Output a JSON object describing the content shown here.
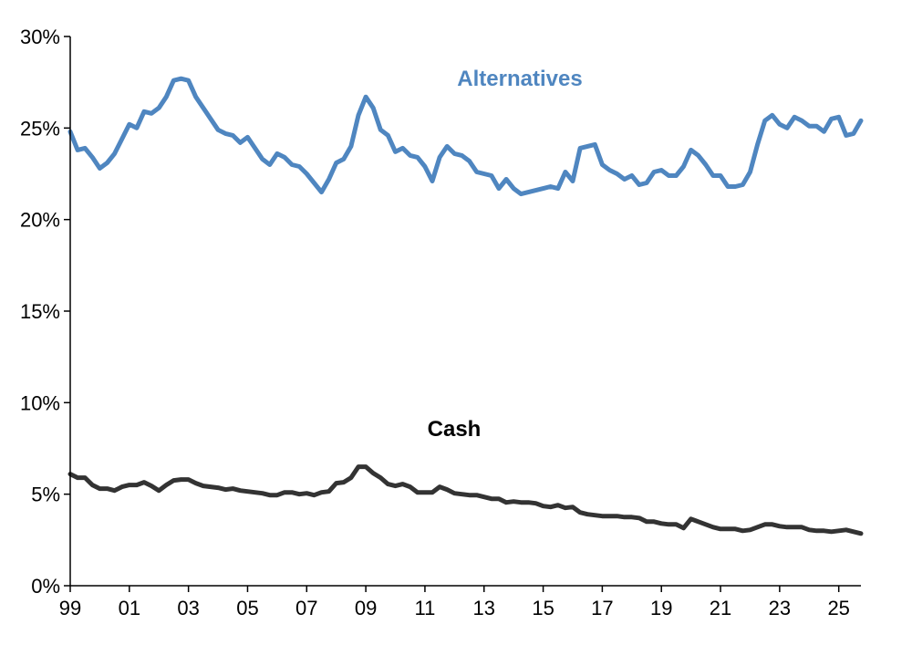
{
  "chart_data": {
    "type": "line",
    "title": "",
    "xlabel": "",
    "ylabel": "",
    "xlim": [
      1999,
      2025.75
    ],
    "ylim": [
      0,
      30
    ],
    "x_ticks": [
      {
        "x": 1999,
        "label": "99"
      },
      {
        "x": 2001,
        "label": "01"
      },
      {
        "x": 2003,
        "label": "03"
      },
      {
        "x": 2005,
        "label": "05"
      },
      {
        "x": 2007,
        "label": "07"
      },
      {
        "x": 2009,
        "label": "09"
      },
      {
        "x": 2011,
        "label": "11"
      },
      {
        "x": 2013,
        "label": "13"
      },
      {
        "x": 2015,
        "label": "15"
      },
      {
        "x": 2017,
        "label": "17"
      },
      {
        "x": 2019,
        "label": "19"
      },
      {
        "x": 2021,
        "label": "21"
      },
      {
        "x": 2023,
        "label": "23"
      },
      {
        "x": 2025,
        "label": "25"
      }
    ],
    "y_ticks": [
      {
        "y": 0,
        "label": "0%"
      },
      {
        "y": 5,
        "label": "5%"
      },
      {
        "y": 10,
        "label": "10%"
      },
      {
        "y": 15,
        "label": "15%"
      },
      {
        "y": 20,
        "label": "20%"
      },
      {
        "y": 25,
        "label": "25%"
      },
      {
        "y": 30,
        "label": "30%"
      }
    ],
    "grid": false,
    "legend": "none",
    "series": [
      {
        "name": "Alternatives",
        "color": "#4f86c0",
        "label_position": "top-right",
        "points": [
          [
            1999.0,
            24.8
          ],
          [
            1999.25,
            23.8
          ],
          [
            1999.5,
            23.9
          ],
          [
            1999.75,
            23.4
          ],
          [
            2000.0,
            22.8
          ],
          [
            2000.25,
            23.1
          ],
          [
            2000.5,
            23.6
          ],
          [
            2000.75,
            24.4
          ],
          [
            2001.0,
            25.2
          ],
          [
            2001.25,
            25.0
          ],
          [
            2001.5,
            25.9
          ],
          [
            2001.75,
            25.8
          ],
          [
            2002.0,
            26.1
          ],
          [
            2002.25,
            26.7
          ],
          [
            2002.5,
            27.6
          ],
          [
            2002.75,
            27.7
          ],
          [
            2003.0,
            27.6
          ],
          [
            2003.25,
            26.7
          ],
          [
            2003.5,
            26.1
          ],
          [
            2003.75,
            25.5
          ],
          [
            2004.0,
            24.9
          ],
          [
            2004.25,
            24.7
          ],
          [
            2004.5,
            24.6
          ],
          [
            2004.75,
            24.2
          ],
          [
            2005.0,
            24.5
          ],
          [
            2005.25,
            23.9
          ],
          [
            2005.5,
            23.3
          ],
          [
            2005.75,
            23.0
          ],
          [
            2006.0,
            23.6
          ],
          [
            2006.25,
            23.4
          ],
          [
            2006.5,
            23.0
          ],
          [
            2006.75,
            22.9
          ],
          [
            2007.0,
            22.5
          ],
          [
            2007.25,
            22.0
          ],
          [
            2007.5,
            21.5
          ],
          [
            2007.75,
            22.2
          ],
          [
            2008.0,
            23.1
          ],
          [
            2008.25,
            23.3
          ],
          [
            2008.5,
            24.0
          ],
          [
            2008.75,
            25.7
          ],
          [
            2009.0,
            26.7
          ],
          [
            2009.25,
            26.1
          ],
          [
            2009.5,
            24.9
          ],
          [
            2009.75,
            24.6
          ],
          [
            2010.0,
            23.7
          ],
          [
            2010.25,
            23.9
          ],
          [
            2010.5,
            23.5
          ],
          [
            2010.75,
            23.4
          ],
          [
            2011.0,
            22.9
          ],
          [
            2011.25,
            22.1
          ],
          [
            2011.5,
            23.4
          ],
          [
            2011.75,
            24.0
          ],
          [
            2012.0,
            23.6
          ],
          [
            2012.25,
            23.5
          ],
          [
            2012.5,
            23.2
          ],
          [
            2012.75,
            22.6
          ],
          [
            2013.0,
            22.5
          ],
          [
            2013.25,
            22.4
          ],
          [
            2013.5,
            21.7
          ],
          [
            2013.75,
            22.2
          ],
          [
            2014.0,
            21.7
          ],
          [
            2014.25,
            21.4
          ],
          [
            2014.5,
            21.5
          ],
          [
            2014.75,
            21.6
          ],
          [
            2015.0,
            21.7
          ],
          [
            2015.25,
            21.8
          ],
          [
            2015.5,
            21.7
          ],
          [
            2015.75,
            22.6
          ],
          [
            2016.0,
            22.1
          ],
          [
            2016.25,
            23.9
          ],
          [
            2016.5,
            24.0
          ],
          [
            2016.75,
            24.1
          ],
          [
            2017.0,
            23.0
          ],
          [
            2017.25,
            22.7
          ],
          [
            2017.5,
            22.5
          ],
          [
            2017.75,
            22.2
          ],
          [
            2018.0,
            22.4
          ],
          [
            2018.25,
            21.9
          ],
          [
            2018.5,
            22.0
          ],
          [
            2018.75,
            22.6
          ],
          [
            2019.0,
            22.7
          ],
          [
            2019.25,
            22.4
          ],
          [
            2019.5,
            22.4
          ],
          [
            2019.75,
            22.9
          ],
          [
            2020.0,
            23.8
          ],
          [
            2020.25,
            23.5
          ],
          [
            2020.5,
            23.0
          ],
          [
            2020.75,
            22.4
          ],
          [
            2021.0,
            22.4
          ],
          [
            2021.25,
            21.8
          ],
          [
            2021.5,
            21.8
          ],
          [
            2021.75,
            21.9
          ],
          [
            2022.0,
            22.6
          ],
          [
            2022.25,
            24.1
          ],
          [
            2022.5,
            25.4
          ],
          [
            2022.75,
            25.7
          ],
          [
            2023.0,
            25.2
          ],
          [
            2023.25,
            25.0
          ],
          [
            2023.5,
            25.6
          ],
          [
            2023.75,
            25.4
          ],
          [
            2024.0,
            25.1
          ],
          [
            2024.25,
            25.1
          ],
          [
            2024.5,
            24.8
          ],
          [
            2024.75,
            25.5
          ],
          [
            2025.0,
            25.6
          ],
          [
            2025.25,
            24.6
          ],
          [
            2025.5,
            24.7
          ],
          [
            2025.75,
            25.4
          ]
        ]
      },
      {
        "name": "Cash",
        "color": "#333333",
        "label_position": "middle",
        "points": [
          [
            1999.0,
            6.1
          ],
          [
            1999.25,
            5.9
          ],
          [
            1999.5,
            5.9
          ],
          [
            1999.75,
            5.5
          ],
          [
            2000.0,
            5.3
          ],
          [
            2000.25,
            5.3
          ],
          [
            2000.5,
            5.2
          ],
          [
            2000.75,
            5.4
          ],
          [
            2001.0,
            5.5
          ],
          [
            2001.25,
            5.5
          ],
          [
            2001.5,
            5.65
          ],
          [
            2001.75,
            5.45
          ],
          [
            2002.0,
            5.2
          ],
          [
            2002.25,
            5.5
          ],
          [
            2002.5,
            5.75
          ],
          [
            2002.75,
            5.8
          ],
          [
            2003.0,
            5.8
          ],
          [
            2003.25,
            5.6
          ],
          [
            2003.5,
            5.45
          ],
          [
            2003.75,
            5.4
          ],
          [
            2004.0,
            5.35
          ],
          [
            2004.25,
            5.25
          ],
          [
            2004.5,
            5.3
          ],
          [
            2004.75,
            5.2
          ],
          [
            2005.0,
            5.15
          ],
          [
            2005.25,
            5.1
          ],
          [
            2005.5,
            5.05
          ],
          [
            2005.75,
            4.95
          ],
          [
            2006.0,
            4.95
          ],
          [
            2006.25,
            5.1
          ],
          [
            2006.5,
            5.1
          ],
          [
            2006.75,
            5.0
          ],
          [
            2007.0,
            5.05
          ],
          [
            2007.25,
            4.95
          ],
          [
            2007.5,
            5.1
          ],
          [
            2007.75,
            5.15
          ],
          [
            2008.0,
            5.6
          ],
          [
            2008.25,
            5.65
          ],
          [
            2008.5,
            5.9
          ],
          [
            2008.75,
            6.5
          ],
          [
            2009.0,
            6.5
          ],
          [
            2009.25,
            6.15
          ],
          [
            2009.5,
            5.9
          ],
          [
            2009.75,
            5.55
          ],
          [
            2010.0,
            5.45
          ],
          [
            2010.25,
            5.55
          ],
          [
            2010.5,
            5.4
          ],
          [
            2010.75,
            5.1
          ],
          [
            2011.0,
            5.1
          ],
          [
            2011.25,
            5.1
          ],
          [
            2011.5,
            5.4
          ],
          [
            2011.75,
            5.25
          ],
          [
            2012.0,
            5.05
          ],
          [
            2012.25,
            5.0
          ],
          [
            2012.5,
            4.95
          ],
          [
            2012.75,
            4.95
          ],
          [
            2013.0,
            4.85
          ],
          [
            2013.25,
            4.75
          ],
          [
            2013.5,
            4.75
          ],
          [
            2013.75,
            4.55
          ],
          [
            2014.0,
            4.6
          ],
          [
            2014.25,
            4.55
          ],
          [
            2014.5,
            4.55
          ],
          [
            2014.75,
            4.5
          ],
          [
            2015.0,
            4.35
          ],
          [
            2015.25,
            4.3
          ],
          [
            2015.5,
            4.4
          ],
          [
            2015.75,
            4.25
          ],
          [
            2016.0,
            4.3
          ],
          [
            2016.25,
            4.0
          ],
          [
            2016.5,
            3.9
          ],
          [
            2016.75,
            3.85
          ],
          [
            2017.0,
            3.8
          ],
          [
            2017.25,
            3.8
          ],
          [
            2017.5,
            3.8
          ],
          [
            2017.75,
            3.75
          ],
          [
            2018.0,
            3.75
          ],
          [
            2018.25,
            3.7
          ],
          [
            2018.5,
            3.5
          ],
          [
            2018.75,
            3.5
          ],
          [
            2019.0,
            3.4
          ],
          [
            2019.25,
            3.35
          ],
          [
            2019.5,
            3.35
          ],
          [
            2019.75,
            3.15
          ],
          [
            2020.0,
            3.65
          ],
          [
            2020.25,
            3.5
          ],
          [
            2020.5,
            3.35
          ],
          [
            2020.75,
            3.2
          ],
          [
            2021.0,
            3.1
          ],
          [
            2021.25,
            3.1
          ],
          [
            2021.5,
            3.1
          ],
          [
            2021.75,
            3.0
          ],
          [
            2022.0,
            3.05
          ],
          [
            2022.25,
            3.2
          ],
          [
            2022.5,
            3.35
          ],
          [
            2022.75,
            3.35
          ],
          [
            2023.0,
            3.25
          ],
          [
            2023.25,
            3.2
          ],
          [
            2023.5,
            3.2
          ],
          [
            2023.75,
            3.2
          ],
          [
            2024.0,
            3.05
          ],
          [
            2024.25,
            3.0
          ],
          [
            2024.5,
            3.0
          ],
          [
            2024.75,
            2.95
          ],
          [
            2025.0,
            3.0
          ],
          [
            2025.25,
            3.05
          ],
          [
            2025.5,
            2.95
          ],
          [
            2025.75,
            2.85
          ]
        ]
      }
    ]
  }
}
